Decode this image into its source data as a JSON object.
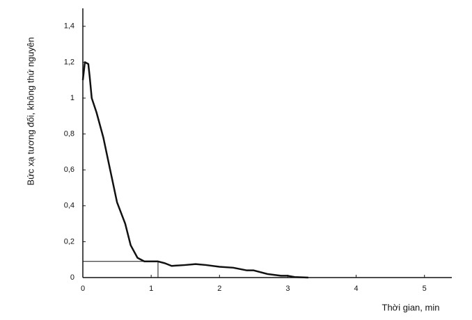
{
  "chart_data": {
    "type": "line",
    "x_label": "Thời gian, min",
    "y_label": "Bức xạ tương đối, không thứ nguyên",
    "xlim": [
      0,
      5.4
    ],
    "ylim": [
      0,
      1.5
    ],
    "xticks": [
      0,
      1,
      2,
      3,
      4,
      5
    ],
    "yticks": [
      0,
      {
        "value": 0.2,
        "label": "0,2"
      },
      {
        "value": 0.4,
        "label": "0,4"
      },
      {
        "value": 0.6,
        "label": "0,6"
      },
      {
        "value": 0.8,
        "label": "0,8"
      },
      1,
      {
        "value": 1.2,
        "label": "1,2"
      },
      {
        "value": 1.4,
        "label": "1,4"
      }
    ],
    "x": [
      0,
      0.03,
      0.08,
      0.1,
      0.13,
      0.2,
      0.3,
      0.4,
      0.5,
      0.58,
      0.62,
      0.7,
      0.8,
      0.9,
      1.0,
      1.1,
      1.2,
      1.3,
      1.5,
      1.65,
      1.8,
      2.0,
      2.2,
      2.4,
      2.5,
      2.7,
      2.9,
      3.0,
      3.1,
      3.3
    ],
    "series": [
      {
        "color": "#111111",
        "values": [
          1.1,
          1.2,
          1.19,
          1.12,
          1.0,
          0.92,
          0.78,
          0.6,
          0.42,
          0.34,
          0.3,
          0.18,
          0.11,
          0.09,
          0.09,
          0.09,
          0.08,
          0.065,
          0.07,
          0.075,
          0.07,
          0.06,
          0.055,
          0.04,
          0.04,
          0.02,
          0.01,
          0.01,
          0.003,
          0
        ]
      }
    ],
    "reference_box": {
      "x": 1.1,
      "y": 0.09
    }
  }
}
